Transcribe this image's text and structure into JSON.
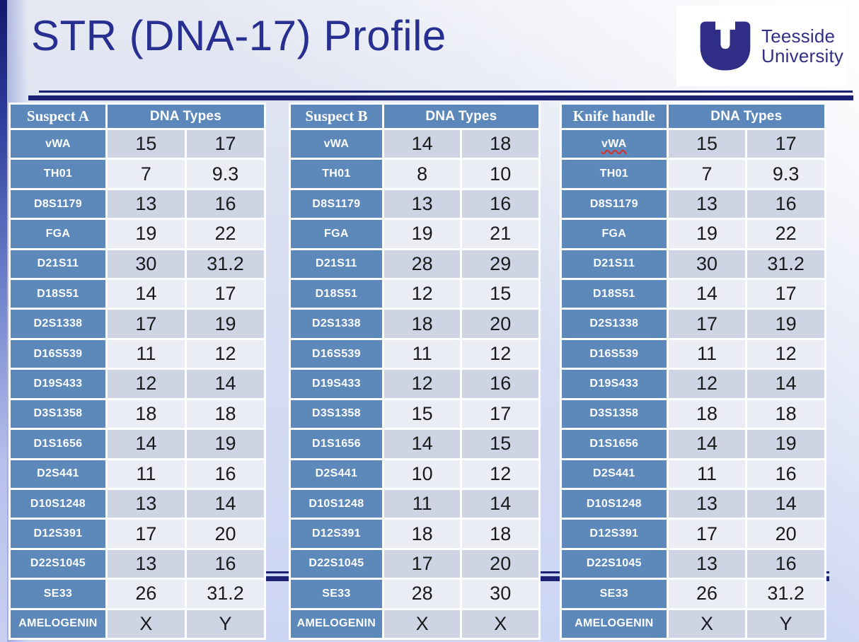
{
  "slide": {
    "title": "STR (DNA-17) Profile"
  },
  "logo": {
    "org": "Teesside University",
    "line1": "Teesside",
    "line2": "University"
  },
  "colors": {
    "header_blue": "#5c87ba",
    "row_shade_dark": "#ced4e3",
    "row_shade_light": "#eaedf4",
    "title_navy": "#272f90",
    "rule_navy": "#1b2173",
    "logo_indigo": "#322f87",
    "squiggle_red": "#d93025"
  },
  "tables": [
    {
      "header": {
        "sample": "Suspect A",
        "types": "DNA Types"
      },
      "rows": [
        {
          "marker": "vWA",
          "v1": "15",
          "v2": "17",
          "squiggle": false
        },
        {
          "marker": "TH01",
          "v1": "7",
          "v2": "9.3",
          "squiggle": false
        },
        {
          "marker": "D8S1179",
          "v1": "13",
          "v2": "16",
          "squiggle": false
        },
        {
          "marker": "FGA",
          "v1": "19",
          "v2": "22",
          "squiggle": false
        },
        {
          "marker": "D21S11",
          "v1": "30",
          "v2": "31.2",
          "squiggle": false
        },
        {
          "marker": "D18S51",
          "v1": "14",
          "v2": "17",
          "squiggle": false
        },
        {
          "marker": "D2S1338",
          "v1": "17",
          "v2": "19",
          "squiggle": false
        },
        {
          "marker": "D16S539",
          "v1": "11",
          "v2": "12",
          "squiggle": false
        },
        {
          "marker": "D19S433",
          "v1": "12",
          "v2": "14",
          "squiggle": false
        },
        {
          "marker": "D3S1358",
          "v1": "18",
          "v2": "18",
          "squiggle": false
        },
        {
          "marker": "D1S1656",
          "v1": "14",
          "v2": "19",
          "squiggle": false
        },
        {
          "marker": "D2S441",
          "v1": "11",
          "v2": "16",
          "squiggle": false
        },
        {
          "marker": "D10S1248",
          "v1": "13",
          "v2": "14",
          "squiggle": false
        },
        {
          "marker": "D12S391",
          "v1": "17",
          "v2": "20",
          "squiggle": false
        },
        {
          "marker": "D22S1045",
          "v1": "13",
          "v2": "16",
          "squiggle": false
        },
        {
          "marker": "SE33",
          "v1": "26",
          "v2": "31.2",
          "squiggle": false
        },
        {
          "marker": "AMELOGENIN",
          "v1": "X",
          "v2": "Y",
          "squiggle": false
        }
      ]
    },
    {
      "header": {
        "sample": "Suspect B",
        "types": "DNA Types"
      },
      "rows": [
        {
          "marker": "vWA",
          "v1": "14",
          "v2": "18",
          "squiggle": false
        },
        {
          "marker": "TH01",
          "v1": "8",
          "v2": "10",
          "squiggle": false
        },
        {
          "marker": "D8S1179",
          "v1": "13",
          "v2": "16",
          "squiggle": false
        },
        {
          "marker": "FGA",
          "v1": "19",
          "v2": "21",
          "squiggle": false
        },
        {
          "marker": "D21S11",
          "v1": "28",
          "v2": "29",
          "squiggle": false
        },
        {
          "marker": "D18S51",
          "v1": "12",
          "v2": "15",
          "squiggle": false
        },
        {
          "marker": "D2S1338",
          "v1": "18",
          "v2": "20",
          "squiggle": false
        },
        {
          "marker": "D16S539",
          "v1": "11",
          "v2": "12",
          "squiggle": false
        },
        {
          "marker": "D19S433",
          "v1": "12",
          "v2": "16",
          "squiggle": false
        },
        {
          "marker": "D3S1358",
          "v1": "15",
          "v2": "17",
          "squiggle": false
        },
        {
          "marker": "D1S1656",
          "v1": "14",
          "v2": "15",
          "squiggle": false
        },
        {
          "marker": "D2S441",
          "v1": "10",
          "v2": "12",
          "squiggle": false
        },
        {
          "marker": "D10S1248",
          "v1": "11",
          "v2": "14",
          "squiggle": false
        },
        {
          "marker": "D12S391",
          "v1": "18",
          "v2": "18",
          "squiggle": false
        },
        {
          "marker": "D22S1045",
          "v1": "17",
          "v2": "20",
          "squiggle": false
        },
        {
          "marker": "SE33",
          "v1": "28",
          "v2": "30",
          "squiggle": false
        },
        {
          "marker": "AMELOGENIN",
          "v1": "X",
          "v2": "X",
          "squiggle": false
        }
      ]
    },
    {
      "header": {
        "sample": "Knife handle",
        "types": "DNA Types"
      },
      "rows": [
        {
          "marker": "vWA",
          "v1": "15",
          "v2": "17",
          "squiggle": true
        },
        {
          "marker": "TH01",
          "v1": "7",
          "v2": "9.3",
          "squiggle": false
        },
        {
          "marker": "D8S1179",
          "v1": "13",
          "v2": "16",
          "squiggle": false
        },
        {
          "marker": "FGA",
          "v1": "19",
          "v2": "22",
          "squiggle": false
        },
        {
          "marker": "D21S11",
          "v1": "30",
          "v2": "31.2",
          "squiggle": false
        },
        {
          "marker": "D18S51",
          "v1": "14",
          "v2": "17",
          "squiggle": false
        },
        {
          "marker": "D2S1338",
          "v1": "17",
          "v2": "19",
          "squiggle": false
        },
        {
          "marker": "D16S539",
          "v1": "11",
          "v2": "12",
          "squiggle": false
        },
        {
          "marker": "D19S433",
          "v1": "12",
          "v2": "14",
          "squiggle": false
        },
        {
          "marker": "D3S1358",
          "v1": "18",
          "v2": "18",
          "squiggle": false
        },
        {
          "marker": "D1S1656",
          "v1": "14",
          "v2": "19",
          "squiggle": false
        },
        {
          "marker": "D2S441",
          "v1": "11",
          "v2": "16",
          "squiggle": false
        },
        {
          "marker": "D10S1248",
          "v1": "13",
          "v2": "14",
          "squiggle": false
        },
        {
          "marker": "D12S391",
          "v1": "17",
          "v2": "20",
          "squiggle": false
        },
        {
          "marker": "D22S1045",
          "v1": "13",
          "v2": "16",
          "squiggle": false
        },
        {
          "marker": "SE33",
          "v1": "26",
          "v2": "31.2",
          "squiggle": false
        },
        {
          "marker": "AMELOGENIN",
          "v1": "X",
          "v2": "Y",
          "squiggle": false
        }
      ]
    }
  ]
}
